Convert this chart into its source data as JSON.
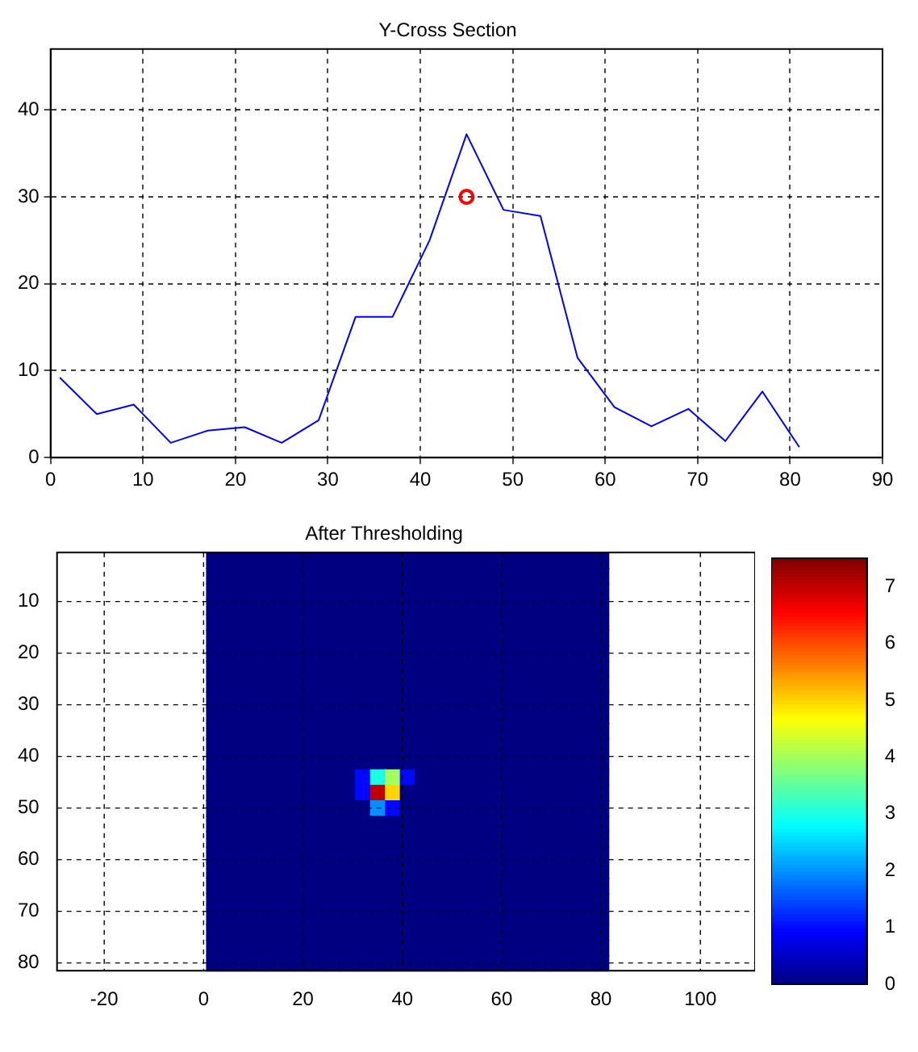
{
  "chart_data": [
    {
      "type": "line",
      "title": "Y-Cross Section",
      "x": [
        1,
        5,
        9,
        13,
        17,
        21,
        25,
        29,
        33,
        37,
        41,
        45,
        49,
        53,
        57,
        61,
        65,
        69,
        73,
        77,
        81
      ],
      "series": [
        {
          "type": "line",
          "color": "#0000ff",
          "marker": "none",
          "values": [
            9.2,
            5,
            6.1,
            1.7,
            3.1,
            3.5,
            1.7,
            4.3,
            16.2,
            16.2,
            25,
            37.2,
            28.5,
            27.8,
            11.5,
            5.8,
            3.6,
            5.6,
            1.9,
            7.6,
            1.2
          ]
        },
        {
          "type": "scatter",
          "color": "#ff0000",
          "marker": "circle",
          "x": [
            45
          ],
          "values": [
            30
          ]
        }
      ],
      "xlim": [
        0,
        90
      ],
      "ylim": [
        0,
        47
      ],
      "xticks": [
        0,
        10,
        20,
        30,
        40,
        50,
        60,
        70,
        80,
        90
      ],
      "yticks": [
        0,
        10,
        20,
        30,
        40
      ],
      "grid": true,
      "legend": false
    },
    {
      "type": "heatmap",
      "title": "After Thresholding",
      "x": [
        2,
        5,
        8,
        11,
        14,
        17,
        20,
        23,
        26,
        29,
        32,
        35,
        38,
        41,
        44,
        47,
        50,
        53,
        56,
        59,
        62,
        65,
        68,
        71,
        74,
        77,
        80
      ],
      "y": [
        2,
        5,
        8,
        11,
        14,
        17,
        20,
        23,
        26,
        29,
        32,
        35,
        38,
        41,
        44,
        47,
        50,
        53,
        56,
        59,
        62,
        65,
        68,
        71,
        74,
        77,
        80
      ],
      "cells": [
        [
          0,
          0,
          0,
          0,
          0,
          0,
          0,
          0,
          0,
          0,
          0,
          0,
          0,
          0,
          0,
          0,
          0,
          0,
          0,
          0,
          0,
          0,
          0,
          0,
          0,
          0,
          0
        ],
        [
          0,
          0,
          0,
          0,
          0,
          0,
          0,
          0,
          0,
          0,
          0,
          0,
          0,
          0,
          0,
          0,
          0,
          0,
          0,
          0,
          0,
          0,
          0,
          0,
          0,
          0,
          0
        ],
        [
          0,
          0,
          0,
          0,
          0,
          0,
          0,
          0,
          0,
          0,
          0,
          0,
          0,
          0,
          0,
          0,
          0,
          0,
          0,
          0,
          0,
          0,
          0,
          0,
          0,
          0,
          0
        ],
        [
          0,
          0,
          0,
          0,
          0,
          0,
          0,
          0,
          0,
          0,
          0,
          0,
          0,
          0,
          0,
          0,
          0,
          0,
          0,
          0,
          0,
          0,
          0,
          0,
          0,
          0,
          0
        ],
        [
          0,
          0,
          0,
          0,
          0,
          0,
          0,
          0,
          0,
          0,
          0,
          0,
          0,
          0,
          0,
          0,
          0,
          0,
          0,
          0,
          0,
          0,
          0,
          0,
          0,
          0,
          0
        ],
        [
          0,
          0,
          0,
          0,
          0,
          0,
          0,
          0,
          0,
          0,
          0,
          0,
          0,
          0,
          0,
          0,
          0,
          0,
          0,
          0,
          0,
          0,
          0,
          0,
          0,
          0,
          0
        ],
        [
          0,
          0,
          0,
          0,
          0,
          0,
          0,
          0,
          0,
          0,
          0,
          0,
          0,
          0,
          0,
          0,
          0,
          0,
          0,
          0,
          0,
          0,
          0,
          0,
          0,
          0,
          0
        ],
        [
          0,
          0,
          0,
          0,
          0,
          0,
          0,
          0,
          0,
          0,
          0,
          0,
          0,
          0,
          0,
          0,
          0,
          0,
          0,
          0,
          0,
          0,
          0,
          0,
          0,
          0,
          0
        ],
        [
          0,
          0,
          0,
          0,
          0,
          0,
          0,
          0,
          0,
          0,
          0,
          0,
          0,
          0,
          0,
          0,
          0,
          0,
          0,
          0,
          0,
          0,
          0,
          0,
          0,
          0,
          0
        ],
        [
          0,
          0,
          0,
          0,
          0,
          0,
          0,
          0,
          0,
          0,
          0,
          0,
          0,
          0,
          0,
          0,
          0,
          0,
          0,
          0,
          0,
          0,
          0,
          0,
          0,
          0,
          0
        ],
        [
          0,
          0,
          0,
          0,
          0,
          0,
          0,
          0,
          0,
          0,
          0,
          0,
          0,
          0,
          0,
          0,
          0,
          0,
          0,
          0,
          0,
          0,
          0,
          0,
          0,
          0,
          0
        ],
        [
          0,
          0,
          0,
          0,
          0,
          0,
          0,
          0,
          0,
          0,
          0,
          0,
          0,
          0,
          0,
          0,
          0,
          0,
          0,
          0,
          0,
          0,
          0,
          0,
          0,
          0,
          0
        ],
        [
          0,
          0,
          0,
          0,
          0,
          0,
          0,
          0,
          0,
          0,
          0,
          0,
          0,
          0,
          0,
          0,
          0,
          0,
          0,
          0,
          0,
          0,
          0,
          0,
          0,
          0,
          0
        ],
        [
          0,
          0,
          0,
          0,
          0,
          0,
          0,
          0,
          0,
          0,
          0,
          0,
          0,
          0,
          0,
          0,
          0,
          0,
          0,
          0,
          0,
          0,
          0,
          0,
          0,
          0,
          0
        ],
        [
          0,
          0,
          0,
          0,
          0,
          0,
          0,
          0,
          0,
          0,
          1,
          3,
          4,
          1,
          0,
          0,
          0,
          0,
          0,
          0,
          0,
          0,
          0,
          0,
          0,
          0,
          0
        ],
        [
          0,
          0,
          0,
          0,
          0,
          0,
          0,
          0,
          0,
          0,
          1,
          7,
          5,
          0,
          0,
          0,
          0,
          0,
          0,
          0,
          0,
          0,
          0,
          0,
          0,
          0,
          0
        ],
        [
          0,
          0,
          0,
          0,
          0,
          0,
          0,
          0,
          0,
          0,
          0,
          2,
          1,
          0,
          0,
          0,
          0,
          0,
          0,
          0,
          0,
          0,
          0,
          0,
          0,
          0,
          0
        ],
        [
          0,
          0,
          0,
          0,
          0,
          0,
          0,
          0,
          0,
          0,
          0,
          0,
          0,
          0,
          0,
          0,
          0,
          0,
          0,
          0,
          0,
          0,
          0,
          0,
          0,
          0,
          0
        ],
        [
          0,
          0,
          0,
          0,
          0,
          0,
          0,
          0,
          0,
          0,
          0,
          0,
          0,
          0,
          0,
          0,
          0,
          0,
          0,
          0,
          0,
          0,
          0,
          0,
          0,
          0,
          0
        ],
        [
          0,
          0,
          0,
          0,
          0,
          0,
          0,
          0,
          0,
          0,
          0,
          0,
          0,
          0,
          0,
          0,
          0,
          0,
          0,
          0,
          0,
          0,
          0,
          0,
          0,
          0,
          0
        ],
        [
          0,
          0,
          0,
          0,
          0,
          0,
          0,
          0,
          0,
          0,
          0,
          0,
          0,
          0,
          0,
          0,
          0,
          0,
          0,
          0,
          0,
          0,
          0,
          0,
          0,
          0,
          0
        ],
        [
          0,
          0,
          0,
          0,
          0,
          0,
          0,
          0,
          0,
          0,
          0,
          0,
          0,
          0,
          0,
          0,
          0,
          0,
          0,
          0,
          0,
          0,
          0,
          0,
          0,
          0,
          0
        ],
        [
          0,
          0,
          0,
          0,
          0,
          0,
          0,
          0,
          0,
          0,
          0,
          0,
          0,
          0,
          0,
          0,
          0,
          0,
          0,
          0,
          0,
          0,
          0,
          0,
          0,
          0,
          0
        ],
        [
          0,
          0,
          0,
          0,
          0,
          0,
          0,
          0,
          0,
          0,
          0,
          0,
          0,
          0,
          0,
          0,
          0,
          0,
          0,
          0,
          0,
          0,
          0,
          0,
          0,
          0,
          0
        ],
        [
          0,
          0,
          0,
          0,
          0,
          0,
          0,
          0,
          0,
          0,
          0,
          0,
          0,
          0,
          0,
          0,
          0,
          0,
          0,
          0,
          0,
          0,
          0,
          0,
          0,
          0,
          0
        ],
        [
          0,
          0,
          0,
          0,
          0,
          0,
          0,
          0,
          0,
          0,
          0,
          0,
          0,
          0,
          0,
          0,
          0,
          0,
          0,
          0,
          0,
          0,
          0,
          0,
          0,
          0,
          0
        ],
        [
          0,
          0,
          0,
          0,
          0,
          0,
          0,
          0,
          0,
          0,
          0,
          0,
          0,
          0,
          0,
          0,
          0,
          0,
          0,
          0,
          0,
          0,
          0,
          0,
          0,
          0,
          0
        ]
      ],
      "xlim": [
        -29.5,
        111
      ],
      "ylim": [
        81.5,
        0.5
      ],
      "xticks": [
        -20,
        0,
        20,
        40,
        60,
        80,
        100
      ],
      "yticks": [
        10,
        20,
        30,
        40,
        50,
        60,
        70,
        80
      ],
      "clim": [
        0,
        7.5
      ],
      "cticks": [
        0,
        1,
        2,
        3,
        4,
        5,
        6,
        7
      ],
      "grid": true
    }
  ]
}
